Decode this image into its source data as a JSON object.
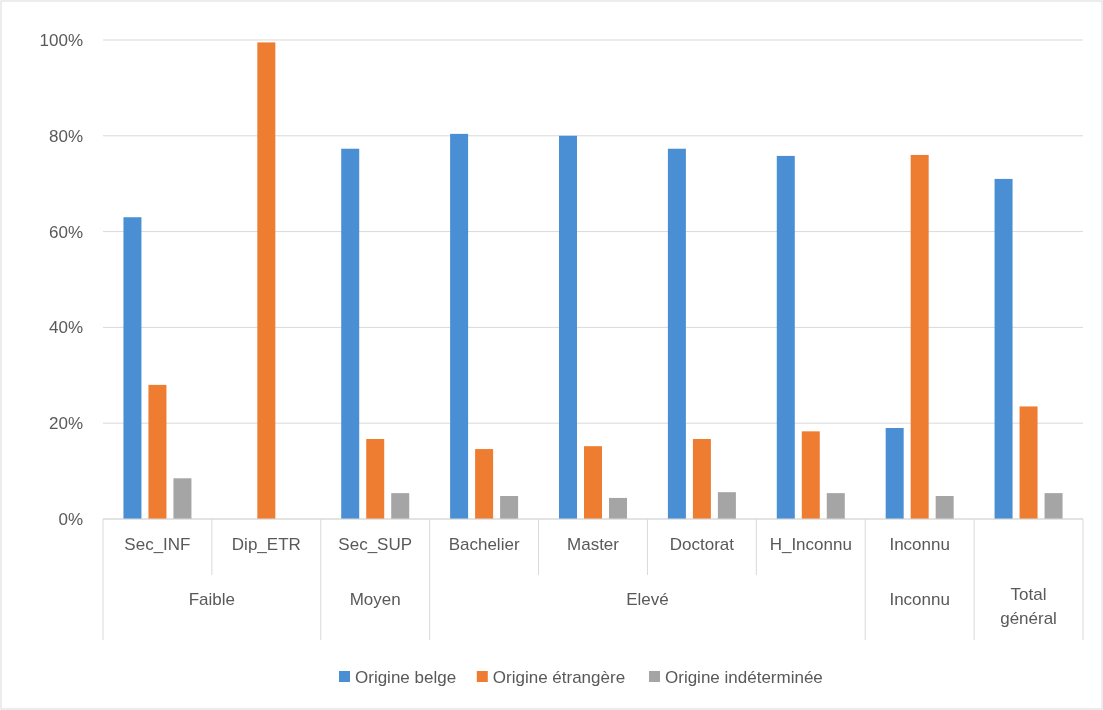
{
  "chart_data": {
    "type": "bar",
    "categories": [
      "Sec_INF",
      "Dip_ETR",
      "Sec_SUP",
      "Bachelier",
      "Master",
      "Doctorat",
      "H_Inconnu",
      "Inconnu",
      null
    ],
    "series": [
      {
        "name": "Origine belge",
        "color": "#4a8fd4",
        "values": [
          63,
          0,
          77.3,
          80.4,
          80,
          77.3,
          75.8,
          19,
          71
        ]
      },
      {
        "name": "Origine étrangère",
        "color": "#ee7d31",
        "values": [
          28,
          99.5,
          16.7,
          14.6,
          15.2,
          16.7,
          18.3,
          76,
          23.5
        ]
      },
      {
        "name": "Origine indéterminée",
        "color": "#a5a5a5",
        "values": [
          8.5,
          0,
          5.4,
          4.8,
          4.4,
          5.6,
          5.4,
          4.8,
          5.4
        ]
      }
    ],
    "annotations": [
      "Faible",
      "Moyen",
      "Elevé",
      "Inconnu",
      "Total général"
    ],
    "ylim": [
      0,
      100
    ],
    "yticks": [
      {
        "value": 0,
        "label": "0%"
      },
      {
        "value": 20,
        "label": "20%"
      },
      {
        "value": 40,
        "label": "40%"
      },
      {
        "value": 60,
        "label": "60%"
      },
      {
        "value": 80,
        "label": "80%"
      },
      {
        "value": 100,
        "label": "100%"
      }
    ],
    "grid": "y",
    "legend": "bottom"
  }
}
